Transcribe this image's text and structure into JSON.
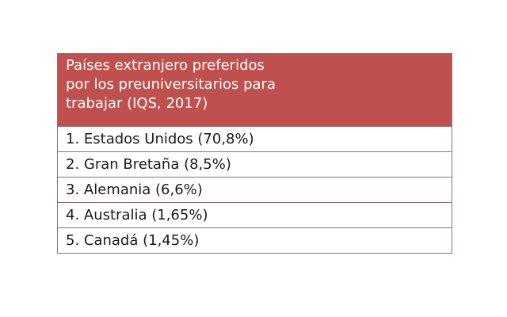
{
  "table": {
    "title_lines": [
      "Países extranjero preferidos",
      "por los preuniversitarios para",
      "trabajar (IQS, 2017)"
    ],
    "rows": [
      "1. Estados Unidos (70,8%)",
      "2. Gran Bretaña (8,5%)",
      "3. Alemania (6,6%)",
      "4. Australia (1,65%)",
      "5. Canadá (1,45%)"
    ]
  },
  "colors": {
    "header_bg": "#c0504d",
    "header_text": "#ffffff",
    "border": "#9b6a6a"
  }
}
